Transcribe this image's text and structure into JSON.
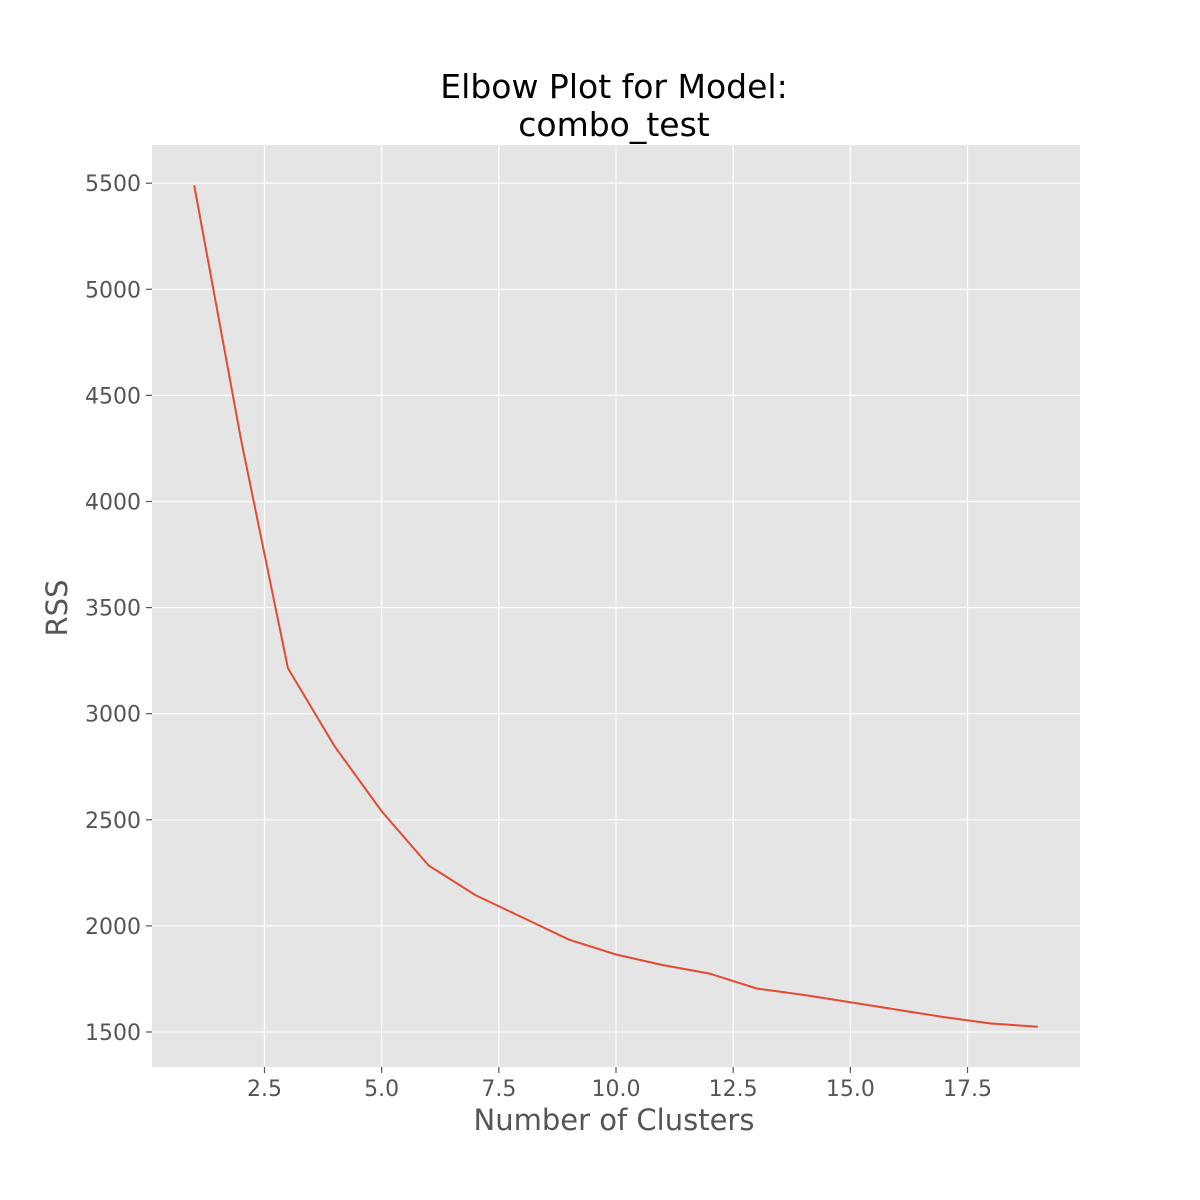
{
  "chart_data": {
    "type": "line",
    "title_lines": [
      "Elbow Plot for Model:",
      "combo_test"
    ],
    "xlabel": "Number of Clusters",
    "ylabel": "RSS",
    "xlim": [
      0.1,
      19.9
    ],
    "ylim": [
      1335,
      5680
    ],
    "xticks": [
      2.5,
      5.0,
      7.5,
      10.0,
      12.5,
      15.0,
      17.5
    ],
    "xtick_labels": [
      "2.5",
      "5.0",
      "7.5",
      "10.0",
      "12.5",
      "15.0",
      "17.5"
    ],
    "yticks": [
      1500,
      2000,
      2500,
      3000,
      3500,
      4000,
      4500,
      5000,
      5500
    ],
    "ytick_labels": [
      "1500",
      "2000",
      "2500",
      "3000",
      "3500",
      "4000",
      "4500",
      "5000",
      "5500"
    ],
    "grid": true,
    "background": "#e5e5e5",
    "grid_color": "#ffffff",
    "series": [
      {
        "color": "#e24a33",
        "x": [
          1,
          2,
          3,
          4,
          5,
          6,
          7,
          8,
          9,
          10,
          11,
          12,
          13,
          14,
          15,
          16,
          17,
          18,
          19
        ],
        "y": [
          5490,
          4290,
          3215,
          2845,
          2540,
          2285,
          2145,
          2040,
          1935,
          1865,
          1815,
          1775,
          1705,
          1675,
          1640,
          1605,
          1570,
          1540,
          1525
        ]
      }
    ]
  }
}
